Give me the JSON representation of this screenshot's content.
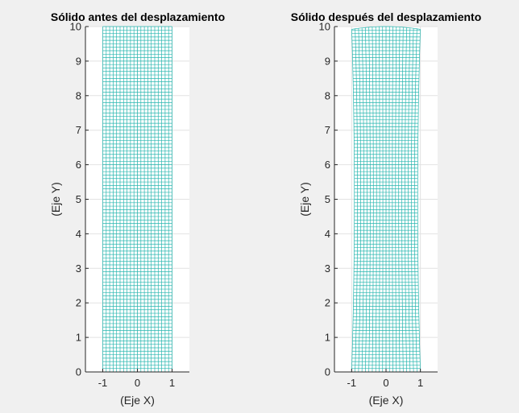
{
  "chart_data": [
    {
      "type": "mesh",
      "title": "Sólido antes del desplazamiento",
      "xlabel": "(Eje X)",
      "ylabel": "(Eje Y)",
      "xlim": [
        -1.5,
        1.5
      ],
      "ylim": [
        0,
        10
      ],
      "xticks": [
        -1,
        0,
        1
      ],
      "yticks": [
        0,
        1,
        2,
        3,
        4,
        5,
        6,
        7,
        8,
        9,
        10
      ],
      "grid": true,
      "mesh_color": "#2ab7b0",
      "mesh": {
        "x_range": [
          -1,
          1
        ],
        "y_range": [
          0,
          10
        ],
        "nx": 20,
        "ny": 100,
        "deformation": "none"
      }
    },
    {
      "type": "mesh",
      "title": "Sólido después del desplazamiento",
      "xlabel": "(Eje X)",
      "ylabel": "(Eje Y)",
      "xlim": [
        -1.5,
        1.5
      ],
      "ylim": [
        0,
        10
      ],
      "xticks": [
        -1,
        0,
        1
      ],
      "yticks": [
        0,
        1,
        2,
        3,
        4,
        5,
        6,
        7,
        8,
        9,
        10
      ],
      "grid": true,
      "mesh_color": "#2ab7b0",
      "mesh": {
        "x_range": [
          -1,
          1
        ],
        "y_range": [
          0,
          10
        ],
        "nx": 20,
        "ny": 100,
        "deformation": "bending",
        "max_deflection": 0.08
      }
    }
  ]
}
